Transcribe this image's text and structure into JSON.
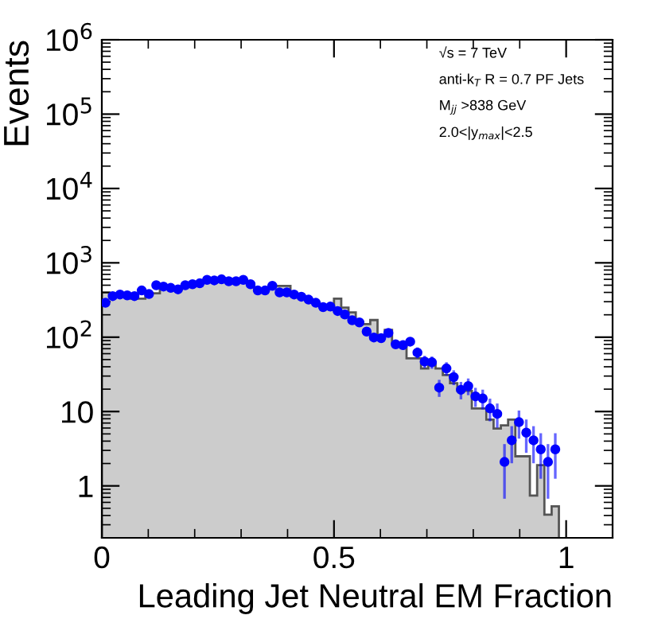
{
  "chart_data": {
    "type": "histogram",
    "xlabel": "Leading Jet Neutral EM Fraction",
    "ylabel": "Events",
    "annotations": [
      "√s = 7 TeV",
      "anti-k$_{T}$ R = 0.7 PF Jets",
      "M$_{jj}$ >838 GeV",
      "2.0<|y$_{max}$|<2.5"
    ],
    "log": "y",
    "xlim": [
      0,
      1.1
    ],
    "ylim": [
      0.2,
      1000000
    ],
    "xticks": [
      0,
      0.5,
      1
    ],
    "yticks": [
      {
        "value": 1,
        "label": "1"
      },
      {
        "value": 10,
        "label": "10"
      },
      {
        "value": 100,
        "label": "10$^{2}$"
      },
      {
        "value": 1000,
        "label": "10$^{3}$"
      },
      {
        "value": 10000,
        "label": "10$^{4}$"
      },
      {
        "value": 100000,
        "label": "10$^{5}$"
      },
      {
        "value": 1000000,
        "label": "10$^{6}$"
      }
    ],
    "grid": false,
    "legend": false,
    "series": [
      {
        "color": "#cccccc",
        "bins": [
          0,
          0.015625,
          0.03125,
          0.046875,
          0.0625,
          0.078125,
          0.09375,
          0.109375,
          0.125,
          0.140625,
          0.15625,
          0.171875,
          0.1875,
          0.203125,
          0.21875,
          0.234375,
          0.25,
          0.265625,
          0.28125,
          0.296875,
          0.3125,
          0.328125,
          0.34375,
          0.359375,
          0.375,
          0.390625,
          0.40625,
          0.421875,
          0.4375,
          0.453125,
          0.46875,
          0.484375,
          0.5,
          0.515625,
          0.53125,
          0.546875,
          0.5625,
          0.578125,
          0.59375,
          0.609375,
          0.625,
          0.640625,
          0.65625,
          0.671875,
          0.6875,
          0.703125,
          0.71875,
          0.734375,
          0.75,
          0.765625,
          0.78125,
          0.796875,
          0.8125,
          0.828125,
          0.84375,
          0.859375,
          0.875,
          0.890625,
          0.90625,
          0.921875,
          0.9375,
          0.953125,
          0.96875,
          0.984375
        ],
        "values": [
          400,
          380,
          380,
          370,
          330,
          330,
          390,
          390,
          480,
          460,
          440,
          500,
          515,
          530,
          590,
          580,
          600,
          565,
          565,
          590,
          515,
          440,
          430,
          490,
          490,
          490,
          375,
          350,
          320,
          290,
          254,
          258,
          330,
          250,
          215,
          160,
          150,
          170,
          100,
          125,
          85,
          85,
          52,
          52,
          38,
          45,
          38,
          31,
          24,
          19,
          19,
          11,
          11,
          7.8,
          5.9,
          6.5,
          7.8,
          2.5,
          2.5,
          0.74,
          1.9,
          0.41,
          0.53
        ]
      },
      {
        "type": "scatter",
        "color": "#0000ff",
        "marker": "circle",
        "x": [
          0.0078,
          0.0234,
          0.0391,
          0.0547,
          0.0703,
          0.0859,
          0.1016,
          0.1172,
          0.1328,
          0.1484,
          0.1641,
          0.1797,
          0.1953,
          0.2109,
          0.2266,
          0.2422,
          0.2578,
          0.2734,
          0.2891,
          0.3047,
          0.3203,
          0.3359,
          0.3516,
          0.3672,
          0.3828,
          0.3984,
          0.4141,
          0.4297,
          0.4453,
          0.4609,
          0.4766,
          0.4922,
          0.5078,
          0.5234,
          0.5391,
          0.5547,
          0.5703,
          0.5859,
          0.6016,
          0.6172,
          0.6328,
          0.6484,
          0.6641,
          0.6797,
          0.6953,
          0.7109,
          0.7266,
          0.7422,
          0.7578,
          0.7734,
          0.7891,
          0.8047,
          0.8203,
          0.8359,
          0.8516,
          0.8672,
          0.8828,
          0.8984,
          0.9141,
          0.9297,
          0.9453,
          0.9609,
          0.9766
        ],
        "values": [
          290,
          357,
          375,
          365,
          357,
          425,
          380,
          500,
          480,
          460,
          440,
          500,
          515,
          530,
          590,
          580,
          600,
          565,
          565,
          590,
          515,
          425,
          425,
          490,
          400,
          400,
          375,
          350,
          320,
          290,
          254,
          258,
          225,
          202,
          169,
          158,
          119,
          99,
          97,
          114,
          80,
          78,
          87,
          62,
          47,
          46,
          21,
          38,
          29,
          19.6,
          22,
          16,
          15,
          11,
          9.3,
          2.1,
          4.1,
          7.2,
          5.2,
          4.1,
          3.1,
          2.1,
          3.1
        ],
        "errors": [
          null,
          null,
          null,
          null,
          null,
          null,
          null,
          null,
          null,
          null,
          null,
          null,
          null,
          null,
          null,
          null,
          null,
          null,
          null,
          null,
          null,
          null,
          null,
          null,
          null,
          null,
          null,
          null,
          null,
          null,
          null,
          null,
          null,
          null,
          null,
          null,
          null,
          null,
          null,
          null,
          null,
          null,
          null,
          7.9,
          6.9,
          6.8,
          4.6,
          6.2,
          5.4,
          4.4,
          4.7,
          4,
          3.9,
          3.3,
          3,
          1.4,
          2,
          2.7,
          2.3,
          2,
          1.8,
          1.4,
          1.8
        ]
      }
    ]
  }
}
